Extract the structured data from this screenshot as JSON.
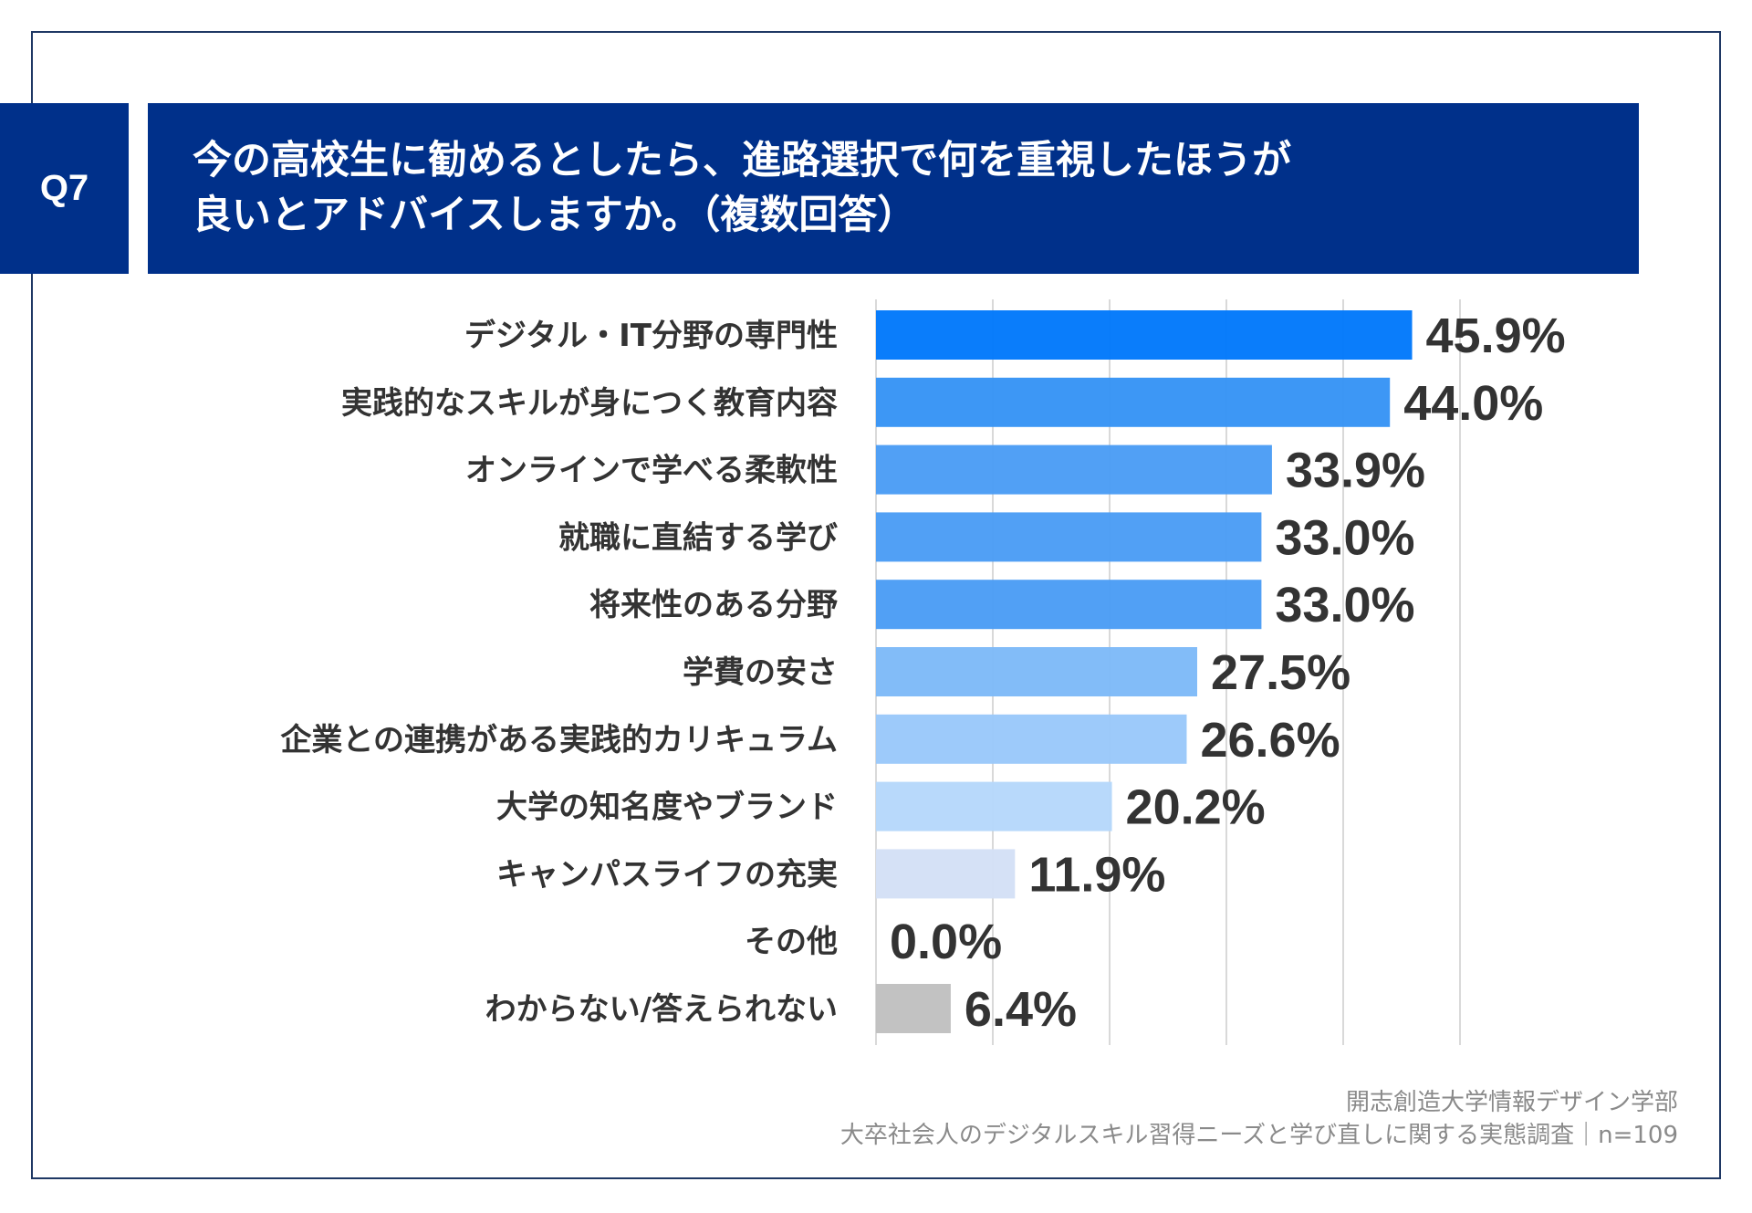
{
  "question_tag": "Q7",
  "title_lines": [
    "今の高校生に勧めるとしたら、進路選択で何を重視したほうが",
    "良いとアドバイスしますか。（複数回答）"
  ],
  "footer": {
    "org": "開志創造大学情報デザイン学部",
    "survey": "大卒社会人のデジタルスキル習得ニーズと学び直しに関する実態調査｜n=109"
  },
  "chart_data": {
    "type": "bar",
    "orientation": "horizontal",
    "categories": [
      "デジタル・IT分野の専門性",
      "実践的なスキルが身につく教育内容",
      "オンラインで学べる柔軟性",
      "就職に直結する学び",
      "将来性のある分野",
      "学費の安さ",
      "企業との連携がある実践的カリキュラム",
      "大学の知名度やブランド",
      "キャンパスライフの充実",
      "その他",
      "わからない/答えられない"
    ],
    "values": [
      45.9,
      44.0,
      33.9,
      33.0,
      33.0,
      27.5,
      26.6,
      20.2,
      11.9,
      0.0,
      6.4
    ],
    "value_labels": [
      "45.9%",
      "44.0%",
      "33.9%",
      "33.0%",
      "33.0%",
      "27.5%",
      "26.6%",
      "20.2%",
      "11.9%",
      "0.0%",
      "6.4%"
    ],
    "colors": [
      "#0078fb",
      "#3593f5",
      "#4a9cf5",
      "#4a9cf5",
      "#4a9cf5",
      "#7db9f8",
      "#99c8fa",
      "#b5d7fb",
      "#d3e0f6",
      "#d3e0f6",
      "#bfbfbf"
    ],
    "xlim": [
      0,
      50
    ],
    "grid": true,
    "grid_step": 10
  }
}
